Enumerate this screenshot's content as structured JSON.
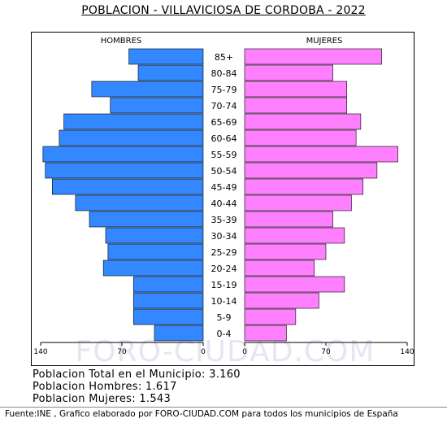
{
  "colors": {
    "men": "#3388ff",
    "women": "#ff80ff",
    "watermark": "#e6e6f2"
  },
  "chart_data": {
    "type": "bar",
    "orientation": "horizontal-pyramid",
    "title": "POBLACION - VILLAVICIOSA DE CORDOBA - 2022",
    "watermark": "FORO-CIUDAD.COM",
    "categories": [
      "85+",
      "80-84",
      "75-79",
      "70-74",
      "65-69",
      "60-64",
      "55-59",
      "50-54",
      "45-49",
      "40-44",
      "35-39",
      "30-34",
      "25-29",
      "20-24",
      "15-19",
      "10-14",
      "5-9",
      "0-4"
    ],
    "series": [
      {
        "name": "HOMBRES",
        "side": "left",
        "values": [
          64,
          56,
          96,
          80,
          120,
          124,
          138,
          136,
          130,
          110,
          98,
          84,
          82,
          86,
          60,
          60,
          60,
          42
        ]
      },
      {
        "name": "MUJERES",
        "side": "right",
        "values": [
          118,
          76,
          88,
          88,
          100,
          96,
          132,
          114,
          102,
          92,
          76,
          86,
          70,
          60,
          86,
          64,
          44,
          36
        ]
      }
    ],
    "xlim": [
      0,
      140
    ],
    "ticks_left": [
      "140",
      "70",
      "0"
    ],
    "ticks_right": [
      "0",
      "70",
      "140"
    ],
    "grid": false
  },
  "stats": {
    "total": "Poblacion Total en el Municipio: 3.160",
    "men": "Poblacion Hombres: 1.617",
    "women": "Poblacion Mujeres: 1.543"
  },
  "footer": "Fuente:INE , Grafico elaborado por FORO-CIUDAD.COM para todos los municipios de España"
}
